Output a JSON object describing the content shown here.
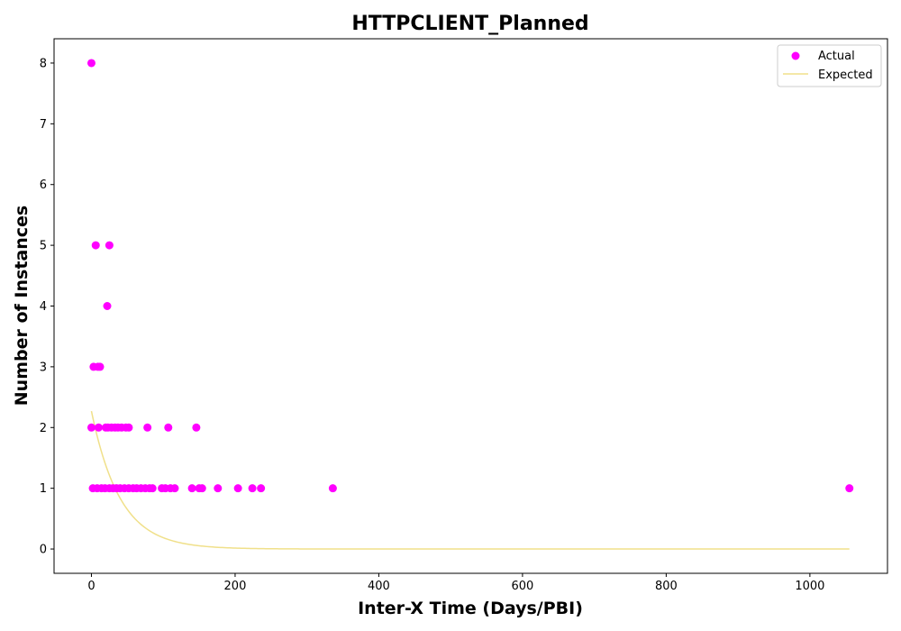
{
  "chart_data": {
    "type": "scatter",
    "title": "HTTPCLIENT_Planned",
    "xlabel": "Inter-X Time (Days/PBI)",
    "ylabel": "Number of Instances",
    "xlim": [
      -52,
      1108
    ],
    "ylim": [
      -0.4,
      8.4
    ],
    "xticks": [
      0,
      200,
      400,
      600,
      800,
      1000
    ],
    "yticks": [
      0,
      1,
      2,
      3,
      4,
      5,
      6,
      7,
      8
    ],
    "xtick_labels": [
      "0",
      "200",
      "400",
      "600",
      "800",
      "1000"
    ],
    "ytick_labels": [
      "0",
      "1",
      "2",
      "3",
      "4",
      "5",
      "6",
      "7",
      "8"
    ],
    "legend_position": "top-right",
    "series": [
      {
        "name": "Actual",
        "kind": "scatter",
        "color": "#ff00ff",
        "points": [
          [
            0,
            8
          ],
          [
            6,
            5
          ],
          [
            25,
            5
          ],
          [
            22,
            4
          ],
          [
            3,
            3
          ],
          [
            9,
            3
          ],
          [
            12,
            3
          ],
          [
            0,
            2
          ],
          [
            10,
            2
          ],
          [
            20,
            2
          ],
          [
            23,
            2
          ],
          [
            28,
            2
          ],
          [
            33,
            2
          ],
          [
            37,
            2
          ],
          [
            42,
            2
          ],
          [
            48,
            2
          ],
          [
            52,
            2
          ],
          [
            78,
            2
          ],
          [
            107,
            2
          ],
          [
            146,
            2
          ],
          [
            2,
            1
          ],
          [
            8,
            1
          ],
          [
            14,
            1
          ],
          [
            19,
            1
          ],
          [
            25,
            1
          ],
          [
            30,
            1
          ],
          [
            35,
            1
          ],
          [
            40,
            1
          ],
          [
            46,
            1
          ],
          [
            52,
            1
          ],
          [
            58,
            1
          ],
          [
            63,
            1
          ],
          [
            69,
            1
          ],
          [
            75,
            1
          ],
          [
            81,
            1
          ],
          [
            85,
            1
          ],
          [
            98,
            1
          ],
          [
            103,
            1
          ],
          [
            110,
            1
          ],
          [
            116,
            1
          ],
          [
            140,
            1
          ],
          [
            150,
            1
          ],
          [
            154,
            1
          ],
          [
            176,
            1
          ],
          [
            204,
            1
          ],
          [
            224,
            1
          ],
          [
            236,
            1
          ],
          [
            336,
            1
          ],
          [
            1055,
            1
          ]
        ]
      },
      {
        "name": "Expected",
        "kind": "line",
        "color": "#f0e08a",
        "function": "y = 2.27 * exp(-x / 40)",
        "x_range": [
          0,
          1055
        ]
      }
    ]
  }
}
